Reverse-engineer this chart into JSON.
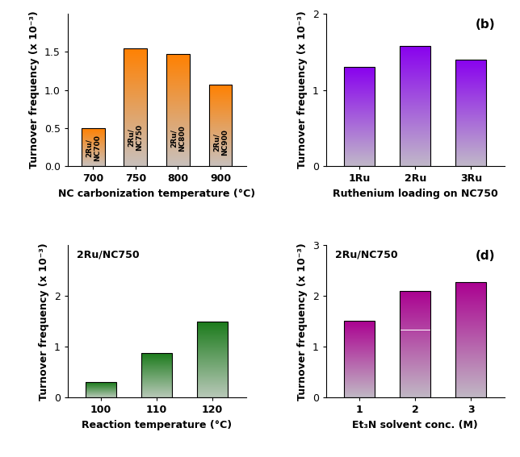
{
  "panel_a": {
    "categories": [
      "700",
      "750",
      "800",
      "900"
    ],
    "labels": [
      "2Ru/\nNC700",
      "2Ru/\nNC750",
      "2Ru/\nNC800",
      "2Ru/\nNC900"
    ],
    "values": [
      0.5,
      1.55,
      1.47,
      1.07
    ],
    "ylim": [
      0,
      2.0
    ],
    "yticks": [
      0.0,
      0.5,
      1.0,
      1.5
    ],
    "xlabel": "NC carbonization temperature (°C)",
    "ylabel": "Turnover frequency (x 10⁻³)",
    "color_top": "#FF8000",
    "color_bottom": "#C8C0BC"
  },
  "panel_b": {
    "categories": [
      "1Ru",
      "2Ru",
      "3Ru"
    ],
    "values": [
      1.3,
      1.58,
      1.4
    ],
    "ylim": [
      0,
      2.0
    ],
    "yticks": [
      0,
      1,
      2
    ],
    "xlabel": "Ruthenium loading on NC750",
    "ylabel": "Turnover frequency (x 10⁻³)",
    "label": "(b)",
    "color_top": "#8800EE",
    "color_bottom": "#C0B8C8"
  },
  "panel_c": {
    "categories": [
      "100",
      "110",
      "120"
    ],
    "values": [
      0.3,
      0.88,
      1.5
    ],
    "ylim": [
      0,
      3.0
    ],
    "yticks": [
      0,
      1,
      2
    ],
    "xlabel": "Reaction temperature (°C)",
    "ylabel": "Turnover frequency (x 10⁻³)",
    "title": "2Ru/NC750",
    "color_top": "#1A7A1A",
    "color_bottom": "#B8C8B8"
  },
  "panel_d": {
    "categories": [
      "1",
      "2",
      "3"
    ],
    "values": [
      1.52,
      2.1,
      2.27
    ],
    "ylim": [
      0,
      3.0
    ],
    "yticks": [
      0,
      1,
      2,
      3
    ],
    "xlabel": "Et₃N solvent conc. (M)",
    "ylabel": "Turnover frequency (x 10⁻³)",
    "title": "2Ru/NC750",
    "label": "(d)",
    "color_top": "#AA0090",
    "color_bottom": "#C0B8C4"
  }
}
